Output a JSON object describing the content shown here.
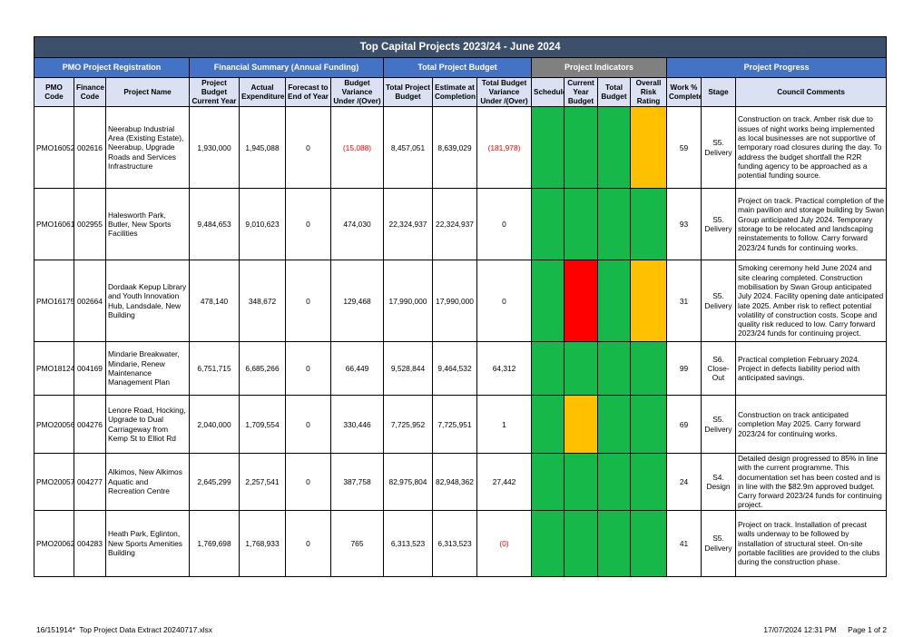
{
  "report": {
    "title": "Top Capital Projects 2023/24 - June 2024",
    "groups": {
      "registration": "PMO Project Registration",
      "financial": "Financial Summary (Annual Funding)",
      "total_budget": "Total Project Budget",
      "indicators": "Project Indicators",
      "progress": "Project Progress"
    },
    "columns": {
      "pmo_code": "PMO Code",
      "finance_code": "Finance Code",
      "project_name": "Project Name",
      "budget_current": "Project Budget Current Year",
      "actual": "Actual Expenditure",
      "forecast": "Forecast to End of Year",
      "variance": "Budget Variance Under /(Over)",
      "total_budget": "Total Project Budget",
      "estimate": "Estimate at Completion",
      "total_variance": "Total Budget Variance Under /(Over)",
      "schedule": "Schedule",
      "current_year_budget": "Current Year Budget",
      "total_budget_ind": "Total Budget",
      "risk": "Overall Risk Rating",
      "work_pct": "Work % Complete",
      "stage": "Stage",
      "comments": "Council Comments"
    },
    "colors": {
      "green": "#16b84a",
      "amber": "#ffc000",
      "red": "#ff0000"
    },
    "rows": [
      {
        "pmo": "PMO16052",
        "finance": "002616",
        "name": "Neerabup Industrial Area (Existing Estate), Neerabup, Upgrade Roads and Services Infrastructure",
        "budget": "1,930,000",
        "actual": "1,945,088",
        "forecast": "0",
        "variance": "(15,088)",
        "total": "8,457,051",
        "estimate": "8,639,029",
        "total_variance": "(181,978)",
        "schedule": "green",
        "cy_budget": "green",
        "total_ind": "green",
        "risk": "amber",
        "work": "59",
        "stage": "S5. Delivery",
        "comments": "Construction on track. Amber risk due to issues of night works being implemented as local businesses are not supportive of temporary road closures during the day. To address the budget shortfall the R2R funding agency to be approached as a potential funding source."
      },
      {
        "pmo": "PMO16061",
        "finance": "002955",
        "name": "Halesworth Park, Butler, New Sports Facilities",
        "budget": "9,484,653",
        "actual": "9,010,623",
        "forecast": "0",
        "variance": "474,030",
        "total": "22,324,937",
        "estimate": "22,324,937",
        "total_variance": "0",
        "schedule": "green",
        "cy_budget": "green",
        "total_ind": "green",
        "risk": "green",
        "work": "93",
        "stage": "S5. Delivery",
        "comments": "Project on track. Practical completion of the main pavilion and storage building by Swan Group anticipated July 2024. Temporary storage to be relocated and landscaping reinstatements to follow. Carry forward 2023/24 funds for continuing works."
      },
      {
        "pmo": "PMO16175",
        "finance": "002664",
        "name": "Dordaak Kepup Library and Youth Innovation Hub, Landsdale, New Building",
        "budget": "478,140",
        "actual": "348,672",
        "forecast": "0",
        "variance": "129,468",
        "total": "17,990,000",
        "estimate": "17,990,000",
        "total_variance": "0",
        "schedule": "green",
        "cy_budget": "red",
        "total_ind": "green",
        "risk": "amber",
        "work": "31",
        "stage": "S5. Delivery",
        "comments": "Smoking ceremony held June 2024 and site clearing completed. Construction mobilisation by Swan Group anticipated July 2024. Facility opening date anticipated late 2025. Amber risk to reflect potential volatility of construction costs. Scope and quality risk reduced to low. Carry forward 2023/24 funds for continuing project."
      },
      {
        "pmo": "PMO18124",
        "finance": "004169",
        "name": "Mindarie Breakwater, Mindarie, Renew Maintenance Management Plan",
        "budget": "6,751,715",
        "actual": "6,685,266",
        "forecast": "0",
        "variance": "66,449",
        "total": "9,528,844",
        "estimate": "9,464,532",
        "total_variance": "64,312",
        "schedule": "green",
        "cy_budget": "green",
        "total_ind": "green",
        "risk": "green",
        "work": "99",
        "stage": "S6. Close-Out",
        "comments": "Practical completion February 2024. Project in defects liability period with anticipated savings."
      },
      {
        "pmo": "PMO20056",
        "finance": "004276",
        "name": "Lenore Road, Hocking, Upgrade to Dual Carriageway from Kemp St to Elliot Rd",
        "budget": "2,040,000",
        "actual": "1,709,554",
        "forecast": "0",
        "variance": "330,446",
        "total": "7,725,952",
        "estimate": "7,725,951",
        "total_variance": "1",
        "schedule": "green",
        "cy_budget": "amber",
        "total_ind": "green",
        "risk": "green",
        "work": "69",
        "stage": "S5. Delivery",
        "comments": "Construction on track anticipated completion May 2025. Carry forward 2023/24 for continuing works."
      },
      {
        "pmo": "PMO20057",
        "finance": "004277",
        "name": "Alkimos, New Alkimos Aquatic and Recreation Centre",
        "budget": "2,645,299",
        "actual": "2,257,541",
        "forecast": "0",
        "variance": "387,758",
        "total": "82,975,804",
        "estimate": "82,948,362",
        "total_variance": "27,442",
        "schedule": "green",
        "cy_budget": "green",
        "total_ind": "green",
        "risk": "green",
        "work": "24",
        "stage": "S4. Design",
        "comments": "Detailed design progressed to 85% in line with the current programme. This documentation set has been costed and is in line with the $82.9m approved budget. Carry forward 2023/24 funds for continuing project."
      },
      {
        "pmo": "PMO20062",
        "finance": "004283",
        "name": "Heath Park, Eglinton, New Sports Amenities Building",
        "budget": "1,769,698",
        "actual": "1,768,933",
        "forecast": "0",
        "variance": "765",
        "total": "6,313,523",
        "estimate": "6,313,523",
        "total_variance": "(0)",
        "schedule": "green",
        "cy_budget": "green",
        "total_ind": "green",
        "risk": "green",
        "work": "41",
        "stage": "S5. Delivery",
        "comments": "Project on track. Installation of precast walls underway to be followed by installation of structural steel. On-site portable facilities are provided to the clubs during the construction phase."
      }
    ]
  },
  "footer": {
    "file": "16/151914*  Top Project Data Extract 20240717.xlsx",
    "timestamp": "17/07/2024 12:31 PM",
    "page": "Page 1 of 2"
  }
}
